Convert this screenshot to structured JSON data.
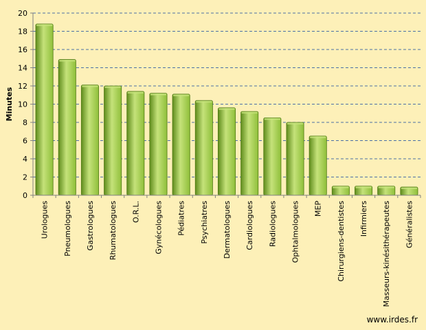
{
  "credit": "www.irdes.fr",
  "colors": {
    "background": "#fdf0b8",
    "bar_light": "#c5e27a",
    "bar_mid": "#8fbf3a",
    "bar_dark": "#5f8c1c",
    "bar_stroke": "#4f7a14",
    "gridline": "#4a6fa5",
    "axis": "#808080"
  },
  "chart_data": {
    "type": "bar",
    "title": "",
    "xlabel": "",
    "ylabel": "Minutes",
    "ylim": [
      0,
      20
    ],
    "yticks": [
      0,
      2,
      4,
      6,
      8,
      10,
      12,
      14,
      16,
      18,
      20
    ],
    "grid": true,
    "legend": "none",
    "categories": [
      "Urologues",
      "Pneumologues",
      "Gastrologues",
      "Rhumatologues",
      "O.R.L.",
      "Gynécologues",
      "Pédiatres",
      "Psychiatres",
      "Dermatologues",
      "Cardiologues",
      "Radiologues",
      "Ophtalmologues",
      "MEP",
      "Chirurgiens-dentistes",
      "Infirmiers",
      "Masseurs-kinésithérapeutes",
      "Généralistes"
    ],
    "values": [
      18.8,
      14.9,
      12.1,
      12.0,
      11.4,
      11.2,
      11.1,
      10.4,
      9.6,
      9.2,
      8.5,
      8.0,
      6.5,
      1.0,
      1.0,
      1.0,
      0.9
    ]
  }
}
